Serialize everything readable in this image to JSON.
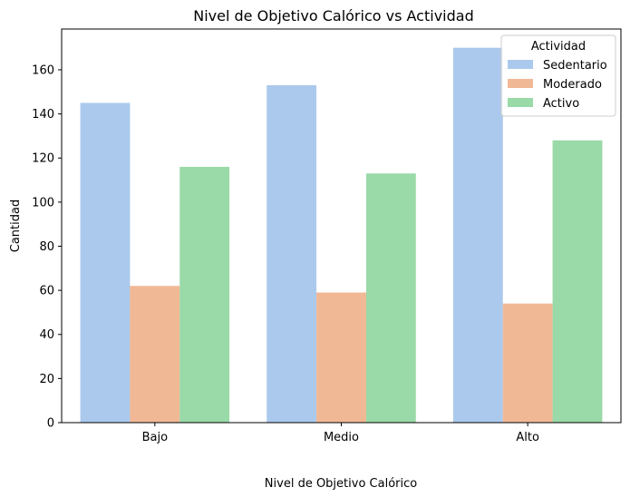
{
  "chart_data": {
    "type": "bar",
    "title": "Nivel de Objetivo Calórico vs Actividad",
    "xlabel": "Nivel de Objetivo Calórico",
    "ylabel": "Cantidad",
    "categories": [
      "Bajo",
      "Medio",
      "Alto"
    ],
    "series": [
      {
        "name": "Sedentario",
        "values": [
          145,
          153,
          170
        ],
        "color": "#abc9ed"
      },
      {
        "name": "Moderado",
        "values": [
          62,
          59,
          54
        ],
        "color": "#f1b895"
      },
      {
        "name": "Activo",
        "values": [
          116,
          113,
          128
        ],
        "color": "#9ad9a8"
      }
    ],
    "ylim": [
      0,
      178.5
    ],
    "yticks": [
      "0",
      "20",
      "40",
      "60",
      "80",
      "100",
      "120",
      "140",
      "160"
    ],
    "grid": false,
    "legend": {
      "title": "Actividad",
      "placement": "top-right"
    }
  }
}
